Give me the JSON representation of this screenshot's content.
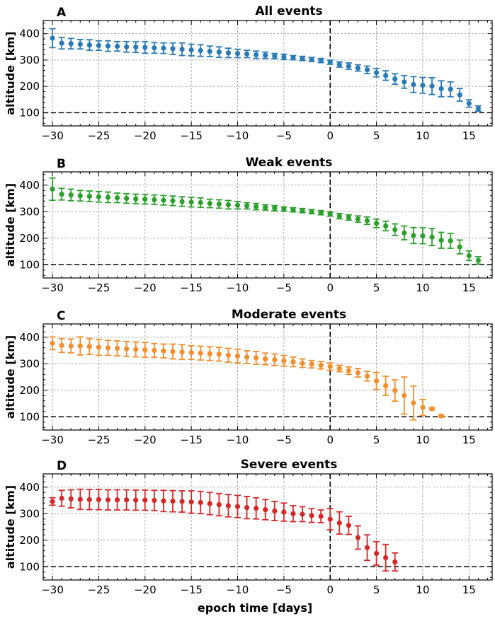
{
  "chart_data": [
    {
      "type": "scatter",
      "panel_label": "A",
      "title": "All events",
      "xlabel": "",
      "ylabel": "altitude [km]",
      "xlim": [
        -31,
        17.5
      ],
      "ylim": [
        50,
        450
      ],
      "xticks": [
        -30,
        -25,
        -20,
        -15,
        -10,
        -5,
        0,
        5,
        10,
        15
      ],
      "yticks": [
        100,
        200,
        300,
        400
      ],
      "grid": true,
      "color": "#2a7bb5",
      "reference_lines": {
        "horizontal_y": 100,
        "vertical_x": 0
      },
      "series": [
        {
          "name": "All events",
          "x": [
            -30,
            -29,
            -28,
            -27,
            -26,
            -25,
            -24,
            -23,
            -22,
            -21,
            -20,
            -19,
            -18,
            -17,
            -16,
            -15,
            -14,
            -13,
            -12,
            -11,
            -10,
            -9,
            -8,
            -7,
            -6,
            -5,
            -4,
            -3,
            -2,
            -1,
            0,
            1,
            2,
            3,
            4,
            5,
            6,
            7,
            8,
            9,
            10,
            11,
            12,
            13,
            14,
            15,
            16
          ],
          "y": [
            383,
            364,
            362,
            360,
            357,
            355,
            353,
            352,
            350,
            349,
            348,
            346,
            345,
            343,
            341,
            338,
            336,
            333,
            330,
            327,
            325,
            323,
            320,
            318,
            315,
            312,
            309,
            306,
            302,
            298,
            292,
            283,
            277,
            270,
            263,
            252,
            241,
            228,
            217,
            207,
            204,
            201,
            191,
            189,
            168,
            135,
            116
          ],
          "err": [
            36,
            22,
            20,
            18,
            20,
            18,
            20,
            18,
            20,
            20,
            22,
            20,
            20,
            22,
            24,
            22,
            22,
            20,
            20,
            18,
            16,
            14,
            14,
            12,
            10,
            10,
            8,
            8,
            8,
            8,
            8,
            10,
            12,
            12,
            14,
            16,
            18,
            20,
            24,
            30,
            30,
            32,
            30,
            28,
            24,
            14,
            10
          ]
        }
      ]
    },
    {
      "type": "scatter",
      "panel_label": "B",
      "title": "Weak events",
      "xlabel": "",
      "ylabel": "altitude [km]",
      "xlim": [
        -31,
        17.5
      ],
      "ylim": [
        50,
        450
      ],
      "xticks": [
        -30,
        -25,
        -20,
        -15,
        -10,
        -5,
        0,
        5,
        10,
        15
      ],
      "yticks": [
        100,
        200,
        300,
        400
      ],
      "grid": true,
      "color": "#2ca02c",
      "reference_lines": {
        "horizontal_y": 100,
        "vertical_x": 0
      },
      "series": [
        {
          "name": "Weak events",
          "x": [
            -30,
            -29,
            -28,
            -27,
            -26,
            -25,
            -24,
            -23,
            -22,
            -21,
            -20,
            -19,
            -18,
            -17,
            -16,
            -15,
            -14,
            -13,
            -12,
            -11,
            -10,
            -9,
            -8,
            -7,
            -6,
            -5,
            -4,
            -3,
            -2,
            -1,
            0,
            1,
            2,
            3,
            4,
            5,
            6,
            7,
            8,
            9,
            10,
            11,
            12,
            13,
            14,
            15,
            16
          ],
          "y": [
            385,
            366,
            363,
            360,
            358,
            356,
            354,
            352,
            350,
            348,
            347,
            345,
            343,
            341,
            338,
            336,
            334,
            331,
            329,
            326,
            324,
            322,
            319,
            316,
            313,
            310,
            307,
            304,
            300,
            296,
            291,
            283,
            278,
            272,
            266,
            256,
            246,
            232,
            220,
            210,
            209,
            204,
            192,
            190,
            167,
            134,
            116
          ],
          "err": [
            42,
            22,
            22,
            20,
            20,
            20,
            20,
            18,
            18,
            18,
            18,
            18,
            18,
            18,
            18,
            18,
            18,
            16,
            16,
            16,
            14,
            12,
            12,
            10,
            10,
            8,
            8,
            8,
            8,
            8,
            8,
            10,
            10,
            12,
            14,
            16,
            18,
            22,
            26,
            30,
            30,
            32,
            30,
            28,
            26,
            18,
            14
          ]
        }
      ]
    },
    {
      "type": "scatter",
      "panel_label": "C",
      "title": "Moderate events",
      "xlabel": "",
      "ylabel": "altitude [km]",
      "xlim": [
        -31,
        17.5
      ],
      "ylim": [
        50,
        450
      ],
      "xticks": [
        -30,
        -25,
        -20,
        -15,
        -10,
        -5,
        0,
        5,
        10,
        15
      ],
      "yticks": [
        100,
        200,
        300,
        400
      ],
      "grid": true,
      "color": "#f28e2b",
      "reference_lines": {
        "horizontal_y": 100,
        "vertical_x": 0
      },
      "series": [
        {
          "name": "Moderate events",
          "x": [
            -30,
            -29,
            -28,
            -27,
            -26,
            -25,
            -24,
            -23,
            -22,
            -21,
            -20,
            -19,
            -18,
            -17,
            -16,
            -15,
            -14,
            -13,
            -12,
            -11,
            -10,
            -9,
            -8,
            -7,
            -6,
            -5,
            -4,
            -3,
            -2,
            -1,
            0,
            1,
            2,
            3,
            4,
            5,
            6,
            7,
            8,
            9,
            10,
            11,
            12
          ],
          "y": [
            377,
            369,
            367,
            367,
            365,
            362,
            360,
            358,
            356,
            354,
            352,
            350,
            348,
            346,
            344,
            342,
            340,
            338,
            336,
            332,
            329,
            325,
            322,
            318,
            315,
            311,
            307,
            302,
            298,
            294,
            289,
            282,
            274,
            266,
            253,
            235,
            217,
            199,
            180,
            152,
            135,
            130,
            103
          ],
          "err": [
            24,
            26,
            26,
            34,
            30,
            30,
            28,
            28,
            28,
            28,
            28,
            26,
            26,
            28,
            28,
            26,
            26,
            26,
            26,
            26,
            26,
            24,
            24,
            22,
            22,
            20,
            18,
            16,
            14,
            14,
            14,
            12,
            14,
            16,
            18,
            32,
            36,
            40,
            70,
            64,
            30,
            4,
            4
          ]
        }
      ]
    },
    {
      "type": "scatter",
      "panel_label": "D",
      "title": "Severe events",
      "xlabel": "epoch time [days]",
      "ylabel": "altitude [km]",
      "xlim": [
        -31,
        17.5
      ],
      "ylim": [
        50,
        450
      ],
      "xticks": [
        -30,
        -25,
        -20,
        -15,
        -10,
        -5,
        0,
        5,
        10,
        15
      ],
      "yticks": [
        100,
        200,
        300,
        400
      ],
      "grid": true,
      "color": "#d62728",
      "reference_lines": {
        "horizontal_y": 100,
        "vertical_x": 0
      },
      "series": [
        {
          "name": "Severe events",
          "x": [
            -30,
            -29,
            -28,
            -27,
            -26,
            -25,
            -24,
            -23,
            -22,
            -21,
            -20,
            -19,
            -18,
            -17,
            -16,
            -15,
            -14,
            -13,
            -12,
            -11,
            -10,
            -9,
            -8,
            -7,
            -6,
            -5,
            -4,
            -3,
            -2,
            -1,
            0,
            1,
            2,
            3,
            4,
            5,
            6,
            7
          ],
          "y": [
            346,
            358,
            356,
            354,
            353,
            353,
            352,
            352,
            352,
            351,
            351,
            350,
            348,
            347,
            346,
            344,
            342,
            338,
            334,
            330,
            327,
            323,
            320,
            315,
            310,
            306,
            300,
            298,
            293,
            290,
            279,
            265,
            256,
            210,
            172,
            150,
            134,
            118
          ],
          "err": [
            14,
            30,
            34,
            38,
            38,
            38,
            38,
            38,
            38,
            38,
            38,
            38,
            40,
            40,
            40,
            42,
            42,
            42,
            42,
            42,
            42,
            42,
            40,
            38,
            36,
            34,
            30,
            28,
            26,
            24,
            40,
            42,
            34,
            44,
            48,
            44,
            50,
            34
          ]
        }
      ]
    }
  ]
}
